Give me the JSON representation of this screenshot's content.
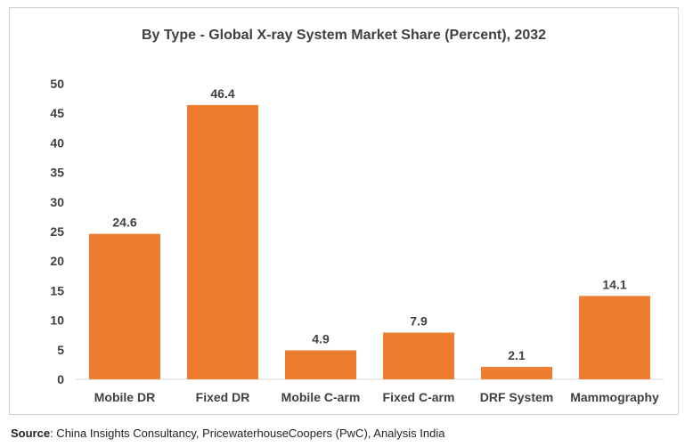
{
  "source": {
    "label": "Source",
    "text": ": China Insights Consultancy, PricewaterhouseCoopers (PwC), Analysis India"
  },
  "chart_data": {
    "type": "bar",
    "title": "By Type - Global X-ray System Market Share (Percent), 2032",
    "xlabel": "",
    "ylabel": "",
    "categories": [
      "Mobile DR",
      "Fixed DR",
      "Mobile C-arm",
      "Fixed C-arm",
      "DRF System",
      "Mammography"
    ],
    "values": [
      24.6,
      46.4,
      4.9,
      7.9,
      2.1,
      14.1
    ],
    "data_labels": [
      "24.6",
      "46.4",
      "4.9",
      "7.9",
      "2.1",
      "14.1"
    ],
    "ylim": [
      0,
      50
    ],
    "yticks": [
      "0",
      "5",
      "10",
      "15",
      "20",
      "25",
      "30",
      "35",
      "40",
      "45",
      "50"
    ],
    "grid": false,
    "legend": "none",
    "bar_color": "#ED7D31",
    "text_color": "#404040"
  }
}
